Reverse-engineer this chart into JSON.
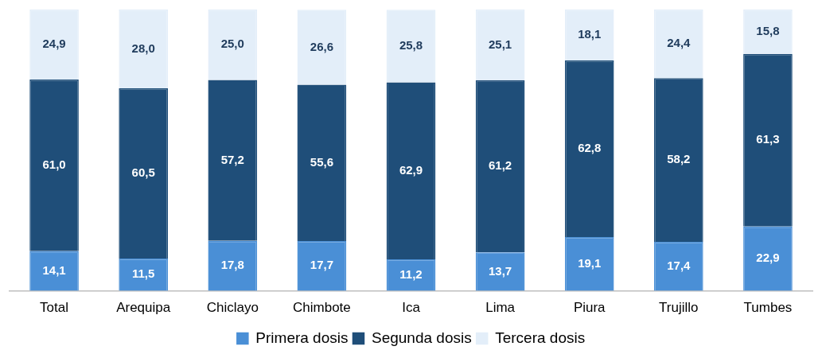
{
  "chart_data": {
    "type": "bar",
    "stacked": true,
    "legend": "bottom",
    "grid": false,
    "categories": [
      "Total",
      "Arequipa",
      "Chiclayo",
      "Chimbote",
      "Ica",
      "Lima",
      "Piura",
      "Trujillo",
      "Tumbes"
    ],
    "series": [
      {
        "name": "Primera dosis",
        "color": "#4a8fd6",
        "values": [
          14.1,
          11.5,
          17.8,
          17.7,
          11.2,
          13.7,
          19.1,
          17.4,
          22.9
        ],
        "value_labels": [
          "14,1",
          "11,5",
          "17,8",
          "17,7",
          "11,2",
          "13,7",
          "19,1",
          "17,4",
          "22,9"
        ]
      },
      {
        "name": "Segunda dosis",
        "color": "#1f4e79",
        "values": [
          61.0,
          60.5,
          57.2,
          55.6,
          62.9,
          61.2,
          62.8,
          58.2,
          61.3
        ],
        "value_labels": [
          "61,0",
          "60,5",
          "57,2",
          "55,6",
          "62,9",
          "61,2",
          "62,8",
          "58,2",
          "61,3"
        ]
      },
      {
        "name": "Tercera dosis",
        "color": "#e3eef9",
        "values": [
          24.9,
          28.0,
          25.0,
          26.6,
          25.8,
          25.1,
          18.1,
          24.4,
          15.8
        ],
        "value_labels": [
          "24,9",
          "28,0",
          "25,0",
          "26,6",
          "25,8",
          "25,1",
          "18,1",
          "24,4",
          "15,8"
        ]
      }
    ]
  }
}
